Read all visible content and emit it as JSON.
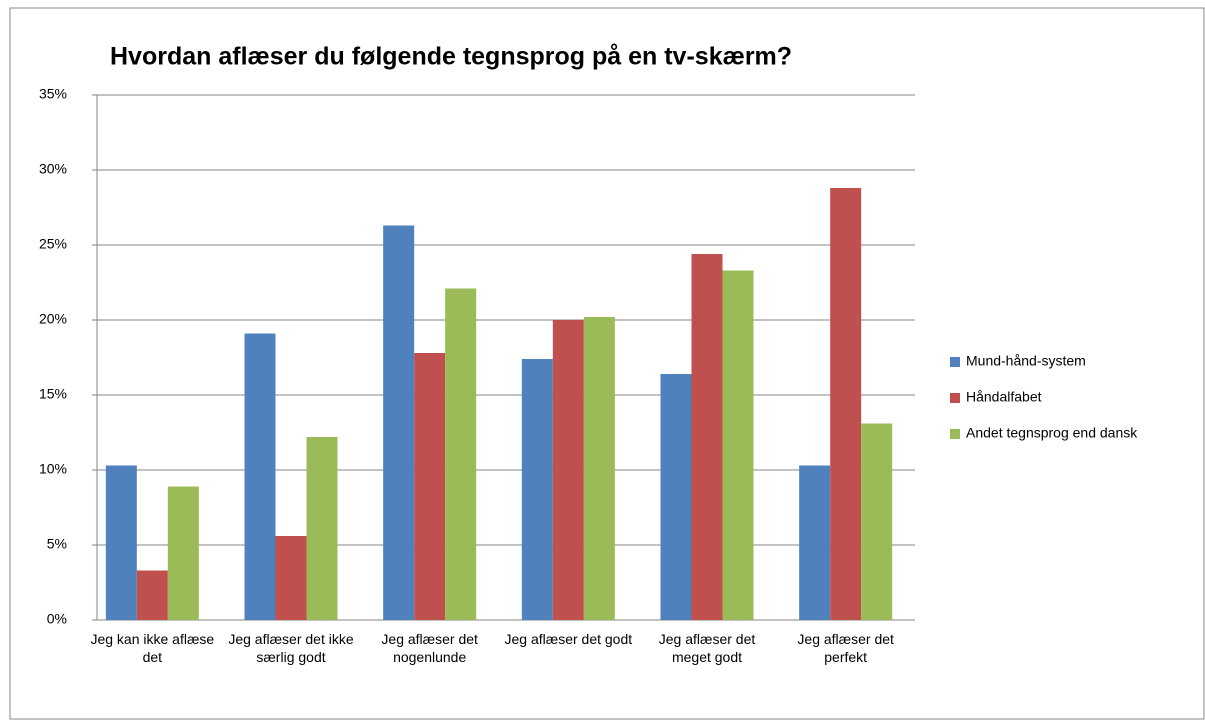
{
  "chart_data": {
    "type": "bar",
    "title": "Hvordan aflæser du følgende tegnsprog på en tv-skærm?",
    "categories": [
      "Jeg kan ikke aflæse det",
      "Jeg aflæser det ikke særlig godt",
      "Jeg aflæser det nogenlunde",
      "Jeg aflæser det godt",
      "Jeg aflæser det meget godt",
      "Jeg aflæser det perfekt"
    ],
    "series": [
      {
        "name": "Mund-hånd-system",
        "color": "#4f81bd",
        "values": [
          10.3,
          19.1,
          26.3,
          17.4,
          16.4,
          10.3
        ]
      },
      {
        "name": "Håndalfabet",
        "color": "#c0504d",
        "values": [
          3.3,
          5.6,
          17.8,
          20.0,
          24.4,
          28.8
        ]
      },
      {
        "name": "Andet tegnsprog end dansk",
        "color": "#9bbb59",
        "values": [
          8.9,
          12.2,
          22.1,
          20.2,
          23.3,
          13.1
        ]
      }
    ],
    "ylim": [
      0,
      35
    ],
    "yticks": [
      {
        "value": 0,
        "label": "0%"
      },
      {
        "value": 5,
        "label": "5%"
      },
      {
        "value": 10,
        "label": "10%"
      },
      {
        "value": 15,
        "label": "15%"
      },
      {
        "value": 20,
        "label": "20%"
      },
      {
        "value": 25,
        "label": "25%"
      },
      {
        "value": 30,
        "label": "30%"
      },
      {
        "value": 35,
        "label": "35%"
      }
    ],
    "grid": true,
    "legend": "right"
  }
}
